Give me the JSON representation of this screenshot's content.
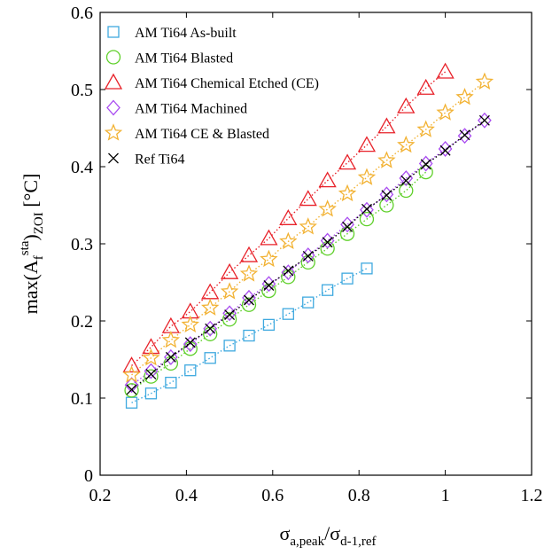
{
  "chart_data": {
    "type": "scatter",
    "xlabel": {
      "base": "σ",
      "sub": "a,peak",
      "sep": "/σ",
      "sub2": "d-1,ref"
    },
    "ylabel": {
      "prefix": "max(A",
      "base_sub": "f",
      "sup": "sta",
      "close": ")",
      "sub": "ZOI",
      "unit": " [°C]"
    },
    "xlim": [
      0.2,
      1.2
    ],
    "ylim": [
      0,
      0.6
    ],
    "xticks": [
      "0.2",
      "0.4",
      "0.6",
      "0.8",
      "1",
      "1.2"
    ],
    "yticks": [
      "0",
      "0.1",
      "0.2",
      "0.3",
      "0.4",
      "0.5",
      "0.6"
    ],
    "grid": false,
    "legend_position": "top-left",
    "series": [
      {
        "name": "AM Ti64 As-built",
        "marker": "square",
        "color": "#3FA9DF",
        "x": [
          0.273,
          0.318,
          0.364,
          0.409,
          0.455,
          0.5,
          0.545,
          0.591,
          0.636,
          0.682,
          0.727,
          0.773,
          0.818
        ],
        "y": [
          0.094,
          0.106,
          0.12,
          0.136,
          0.152,
          0.168,
          0.181,
          0.195,
          0.209,
          0.224,
          0.24,
          0.255,
          0.268
        ]
      },
      {
        "name": "AM Ti64 Blasted",
        "marker": "circle",
        "color": "#5FD02A",
        "x": [
          0.273,
          0.318,
          0.364,
          0.409,
          0.455,
          0.5,
          0.545,
          0.591,
          0.636,
          0.682,
          0.727,
          0.773,
          0.818,
          0.864,
          0.909,
          0.955
        ],
        "y": [
          0.11,
          0.128,
          0.145,
          0.164,
          0.183,
          0.202,
          0.221,
          0.239,
          0.257,
          0.276,
          0.294,
          0.313,
          0.332,
          0.35,
          0.369,
          0.393
        ]
      },
      {
        "name": "AM Ti64 Chemical Etched (CE)",
        "marker": "triangle",
        "color": "#E8222A",
        "x": [
          0.273,
          0.318,
          0.364,
          0.409,
          0.455,
          0.5,
          0.545,
          0.591,
          0.636,
          0.682,
          0.727,
          0.773,
          0.818,
          0.864,
          0.909,
          0.955,
          1.0
        ],
        "y": [
          0.142,
          0.166,
          0.193,
          0.212,
          0.237,
          0.263,
          0.285,
          0.307,
          0.333,
          0.358,
          0.382,
          0.405,
          0.428,
          0.452,
          0.478,
          0.502,
          0.523
        ]
      },
      {
        "name": "AM Ti64 Machined",
        "marker": "diamond",
        "color": "#A94CF0",
        "x": [
          0.273,
          0.318,
          0.364,
          0.409,
          0.455,
          0.5,
          0.545,
          0.591,
          0.636,
          0.682,
          0.727,
          0.773,
          0.818,
          0.864,
          0.909,
          0.955,
          1.0,
          1.045,
          1.091
        ],
        "y": [
          0.117,
          0.135,
          0.153,
          0.17,
          0.19,
          0.21,
          0.23,
          0.248,
          0.263,
          0.285,
          0.304,
          0.325,
          0.344,
          0.364,
          0.385,
          0.404,
          0.423,
          0.44,
          0.46
        ]
      },
      {
        "name": "AM Ti64 CE & Blasted",
        "marker": "star",
        "color": "#F2B233",
        "x": [
          0.273,
          0.318,
          0.364,
          0.409,
          0.455,
          0.5,
          0.545,
          0.591,
          0.636,
          0.682,
          0.727,
          0.773,
          0.818,
          0.864,
          0.909,
          0.955,
          1.0,
          1.045,
          1.091
        ],
        "y": [
          0.13,
          0.152,
          0.175,
          0.195,
          0.217,
          0.238,
          0.261,
          0.28,
          0.303,
          0.322,
          0.345,
          0.365,
          0.386,
          0.408,
          0.428,
          0.448,
          0.47,
          0.49,
          0.51
        ]
      },
      {
        "name": "Ref Ti64",
        "marker": "x",
        "color": "#000000",
        "x": [
          0.273,
          0.318,
          0.364,
          0.409,
          0.455,
          0.5,
          0.545,
          0.591,
          0.636,
          0.682,
          0.727,
          0.773,
          0.818,
          0.864,
          0.909,
          0.955,
          1.0,
          1.045,
          1.091
        ],
        "y": [
          0.111,
          0.131,
          0.153,
          0.172,
          0.19,
          0.208,
          0.227,
          0.246,
          0.265,
          0.284,
          0.302,
          0.322,
          0.345,
          0.363,
          0.382,
          0.403,
          0.421,
          0.441,
          0.46
        ]
      }
    ]
  }
}
